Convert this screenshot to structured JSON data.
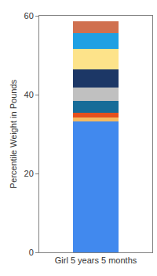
{
  "chart_data": {
    "type": "bar",
    "stacked": true,
    "y_label": "Percentile Weight in Pounds",
    "categories": [
      "Girl 5 years 5 months"
    ],
    "series": [
      {
        "color": "#4189ee",
        "values": [
          33.2
        ]
      },
      {
        "color": "#f5b961",
        "values": [
          1.0
        ]
      },
      {
        "color": "#e5501e",
        "values": [
          1.2
        ]
      },
      {
        "color": "#176c98",
        "values": [
          3.0
        ]
      },
      {
        "color": "#c0c0c0",
        "values": [
          3.4
        ]
      },
      {
        "color": "#1c3766",
        "values": [
          4.6
        ]
      },
      {
        "color": "#fde38a",
        "values": [
          5.2
        ]
      },
      {
        "color": "#1fa0e3",
        "values": [
          4.0
        ]
      },
      {
        "color": "#d0704f",
        "values": [
          3.0
        ]
      }
    ],
    "ylim": [
      0,
      60
    ],
    "yticks": [
      0,
      20,
      40,
      60
    ],
    "grid": false
  }
}
